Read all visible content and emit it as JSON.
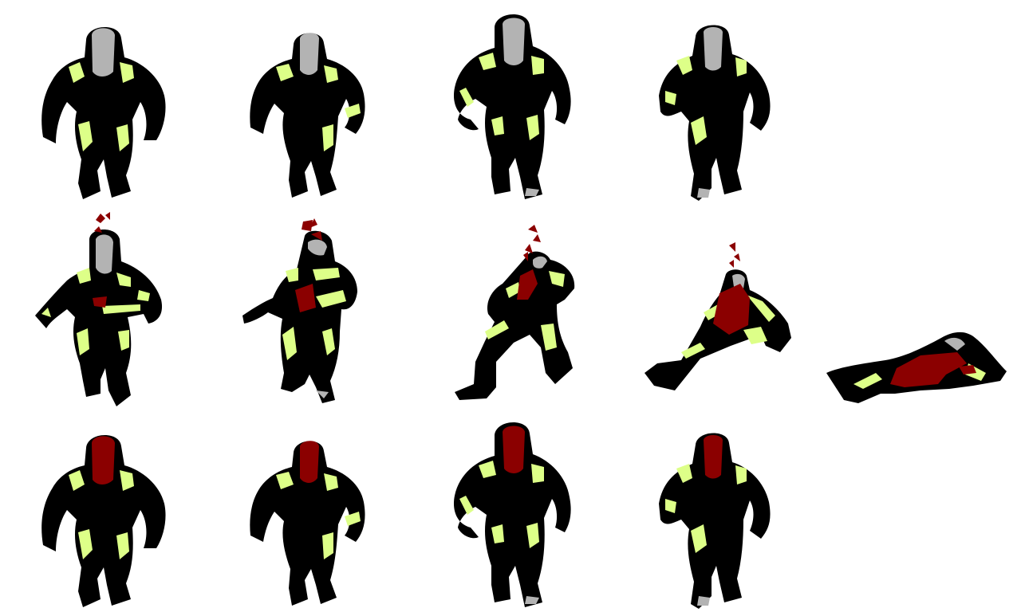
{
  "sprite_sheet": {
    "colors": {
      "outline": "#000000",
      "suit": "#000000",
      "armor": "#ddff88",
      "visor": "#b3b3b3",
      "blood": "#8b0000",
      "background": "#ffffff"
    },
    "rows": [
      {
        "animation": "walk",
        "frames": [
          {
            "pose": "walk-1",
            "visor": "gray"
          },
          {
            "pose": "walk-2",
            "visor": "gray"
          },
          {
            "pose": "walk-3",
            "visor": "gray"
          },
          {
            "pose": "walk-4",
            "visor": "gray"
          }
        ]
      },
      {
        "animation": "death",
        "frames": [
          {
            "pose": "hit",
            "visor": "gray",
            "blood": true
          },
          {
            "pose": "stagger",
            "visor": "gray",
            "blood": true
          },
          {
            "pose": "collapse",
            "visor": "gray",
            "blood": true
          },
          {
            "pose": "sit",
            "visor": "gray",
            "blood": true
          },
          {
            "pose": "lying",
            "visor": "gray",
            "blood": true
          }
        ]
      },
      {
        "animation": "walk-red-visor",
        "frames": [
          {
            "pose": "walk-1",
            "visor": "red"
          },
          {
            "pose": "walk-2",
            "visor": "red"
          },
          {
            "pose": "walk-3",
            "visor": "red"
          },
          {
            "pose": "walk-4",
            "visor": "red"
          }
        ]
      }
    ]
  }
}
